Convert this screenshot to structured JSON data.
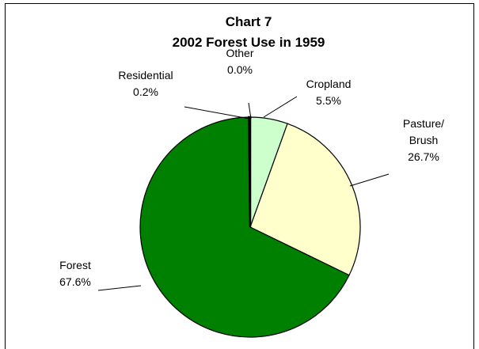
{
  "chart_data": {
    "type": "pie",
    "title": "Chart 7",
    "subtitle": "2002 Forest Use in 1959",
    "slices": [
      {
        "name": "Cropland",
        "value": 5.5,
        "label": "5.5%",
        "color": "#ccffcc"
      },
      {
        "name": "Pasture/ Brush",
        "value": 26.7,
        "label": "26.7%",
        "color": "#ffffcc"
      },
      {
        "name": "Forest",
        "value": 67.6,
        "label": "67.6%",
        "color": "#008000"
      },
      {
        "name": "Residential",
        "value": 0.2,
        "label": "0.2%",
        "color": "#000000"
      },
      {
        "name": "Other",
        "value": 0.0,
        "label": "0.0%",
        "color": "#ffffff"
      }
    ]
  }
}
